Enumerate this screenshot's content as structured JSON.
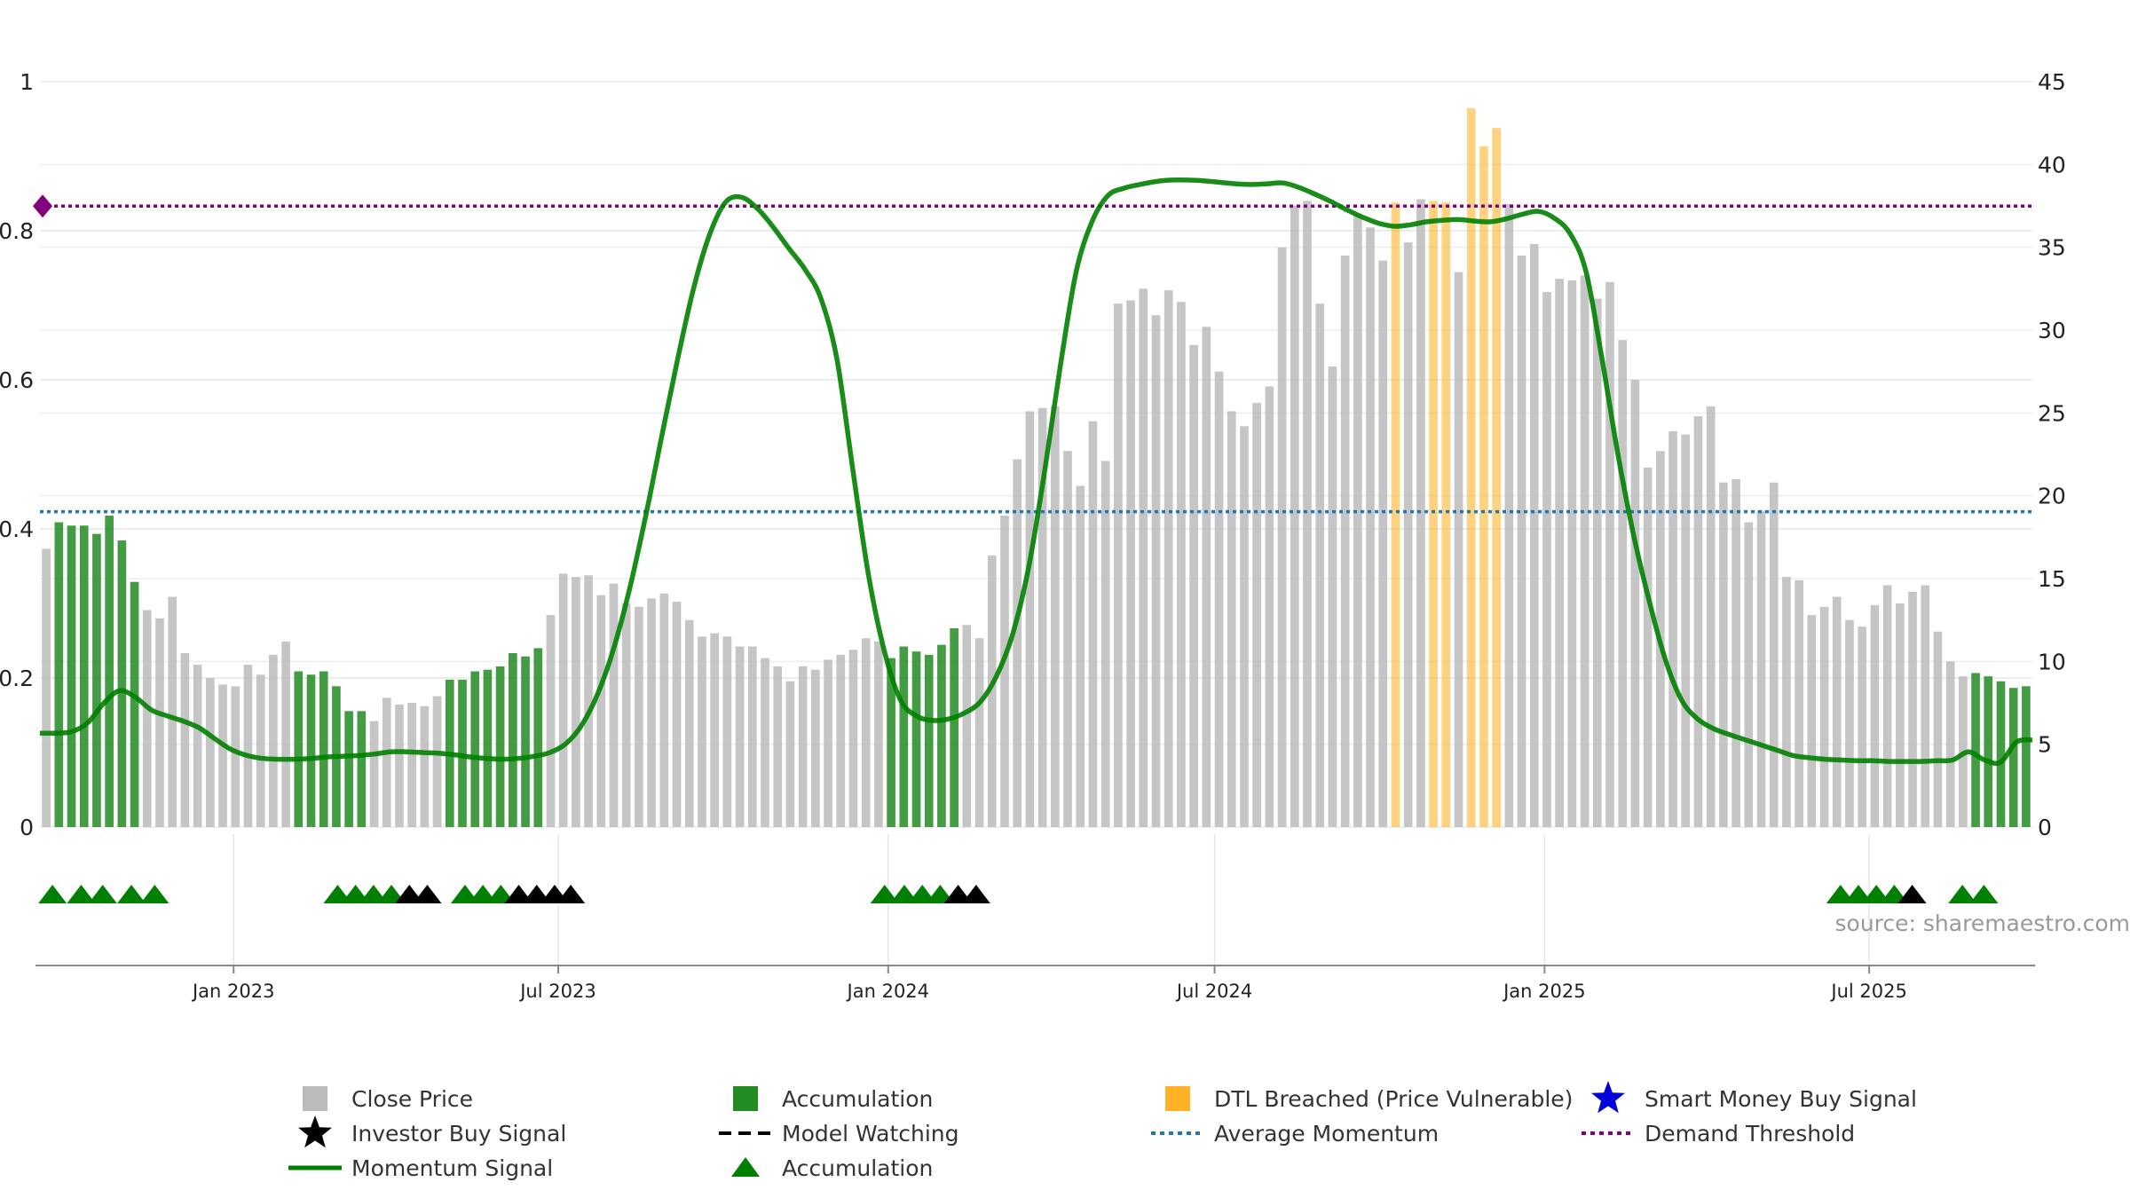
{
  "chart_data": {
    "type": "bar",
    "x_range": [
      "2022-09-15",
      "2025-09-30"
    ],
    "left_axis": {
      "ylim": [
        0,
        1
      ],
      "ticks": [
        "0",
        "0.2",
        "0.4",
        "0.6",
        "0.8",
        "1"
      ]
    },
    "right_axis": {
      "ylim": [
        0,
        45
      ],
      "ticks": [
        "0",
        "5",
        "10",
        "15",
        "20",
        "25",
        "30",
        "35",
        "40",
        "45"
      ]
    },
    "x_ticks": [
      "Jan 2023",
      "Jul 2023",
      "Jan 2024",
      "Jul 2024",
      "Jan 2025",
      "Jul 2025"
    ],
    "close_price": [
      16.8,
      18.4,
      18.2,
      18.2,
      17.7,
      18.8,
      17.3,
      14.8,
      13.1,
      12.6,
      13.9,
      10.5,
      9.8,
      9.0,
      8.6,
      8.5,
      9.8,
      9.2,
      10.4,
      11.2,
      9.4,
      9.2,
      9.4,
      8.5,
      7.0,
      7.0,
      6.4,
      7.8,
      7.4,
      7.5,
      7.3,
      7.9,
      8.9,
      8.9,
      9.4,
      9.5,
      9.7,
      10.5,
      10.3,
      10.8,
      12.8,
      15.3,
      15.1,
      15.2,
      14.0,
      14.7,
      13.5,
      13.3,
      13.8,
      14.1,
      13.6,
      12.5,
      11.5,
      11.7,
      11.5,
      10.9,
      10.9,
      10.2,
      9.7,
      8.8,
      9.7,
      9.5,
      10.1,
      10.4,
      10.7,
      11.4,
      11.2,
      10.2,
      10.9,
      10.6,
      10.4,
      11.0,
      12.0,
      12.2,
      11.4,
      16.4,
      18.8,
      22.2,
      25.1,
      25.3,
      25.4,
      22.7,
      20.6,
      24.5,
      22.1,
      31.6,
      31.8,
      32.5,
      30.9,
      32.4,
      31.7,
      29.1,
      30.2,
      27.5,
      25.1,
      24.2,
      25.6,
      26.6,
      35.0,
      37.5,
      37.8,
      31.6,
      27.8,
      34.5,
      37.0,
      36.2,
      34.2,
      37.7,
      35.3,
      37.9,
      37.8,
      37.7,
      33.5,
      43.4,
      41.1,
      42.2,
      37.6,
      34.5,
      35.2,
      32.3,
      33.1,
      33.0,
      33.3,
      31.9,
      32.9,
      29.4,
      27.0,
      21.7,
      22.7,
      23.9,
      23.7,
      24.8,
      25.4,
      20.8,
      21.0,
      18.4,
      19.1,
      20.8,
      15.1,
      14.9,
      12.8,
      13.3,
      13.9,
      12.5,
      12.1,
      13.4,
      14.6,
      13.5,
      14.2,
      14.6,
      11.8,
      10.0,
      9.1,
      9.3,
      9.1,
      8.8,
      8.4,
      8.5
    ],
    "bar_state": [
      "g",
      "a",
      "a",
      "a",
      "a",
      "a",
      "a",
      "a",
      "g",
      "g",
      "g",
      "g",
      "g",
      "g",
      "g",
      "g",
      "g",
      "g",
      "g",
      "g",
      "a",
      "a",
      "a",
      "a",
      "a",
      "a",
      "g",
      "g",
      "g",
      "g",
      "g",
      "g",
      "a",
      "a",
      "a",
      "a",
      "a",
      "a",
      "a",
      "a",
      "g",
      "g",
      "g",
      "g",
      "g",
      "g",
      "g",
      "g",
      "g",
      "g",
      "g",
      "g",
      "g",
      "g",
      "g",
      "g",
      "g",
      "g",
      "g",
      "g",
      "g",
      "g",
      "g",
      "g",
      "g",
      "g",
      "g",
      "a",
      "a",
      "a",
      "a",
      "a",
      "a",
      "g",
      "g",
      "g",
      "g",
      "g",
      "g",
      "g",
      "g",
      "g",
      "g",
      "g",
      "g",
      "g",
      "g",
      "g",
      "g",
      "g",
      "g",
      "g",
      "g",
      "g",
      "g",
      "g",
      "g",
      "g",
      "g",
      "g",
      "g",
      "g",
      "g",
      "g",
      "g",
      "g",
      "g",
      "o",
      "g",
      "g",
      "o",
      "o",
      "g",
      "o",
      "o",
      "o",
      "g",
      "g",
      "g",
      "g",
      "g",
      "g",
      "g",
      "g",
      "g",
      "g",
      "g",
      "g",
      "g",
      "g",
      "g",
      "g",
      "g",
      "g",
      "g",
      "g",
      "g",
      "g",
      "g",
      "g",
      "g",
      "g",
      "g",
      "g",
      "g",
      "g",
      "g",
      "g",
      "g",
      "g",
      "g",
      "g",
      "g",
      "a",
      "a",
      "a",
      "a",
      "a",
      "a",
      "g",
      "a",
      "a",
      "g"
    ],
    "momentum": [
      0.126,
      0.126,
      0.128,
      0.14,
      0.166,
      0.183,
      0.174,
      0.157,
      0.149,
      0.142,
      0.133,
      0.118,
      0.104,
      0.096,
      0.092,
      0.091,
      0.091,
      0.092,
      0.094,
      0.095,
      0.096,
      0.098,
      0.101,
      0.101,
      0.1,
      0.099,
      0.097,
      0.094,
      0.092,
      0.091,
      0.092,
      0.095,
      0.1,
      0.112,
      0.137,
      0.179,
      0.24,
      0.32,
      0.417,
      0.523,
      0.627,
      0.722,
      0.794,
      0.838,
      0.845,
      0.83,
      0.805,
      0.776,
      0.748,
      0.709,
      0.628,
      0.479,
      0.336,
      0.234,
      0.17,
      0.149,
      0.143,
      0.145,
      0.153,
      0.168,
      0.202,
      0.257,
      0.345,
      0.473,
      0.616,
      0.744,
      0.812,
      0.847,
      0.857,
      0.862,
      0.866,
      0.868,
      0.868,
      0.867,
      0.865,
      0.863,
      0.862,
      0.863,
      0.864,
      0.858,
      0.849,
      0.839,
      0.828,
      0.818,
      0.81,
      0.806,
      0.808,
      0.812,
      0.814,
      0.815,
      0.813,
      0.812,
      0.816,
      0.822,
      0.826,
      0.817,
      0.796,
      0.745,
      0.628,
      0.5,
      0.39,
      0.3,
      0.223,
      0.17,
      0.145,
      0.132,
      0.124,
      0.117,
      0.11,
      0.103,
      0.096,
      0.093,
      0.091,
      0.09,
      0.089,
      0.089,
      0.088,
      0.088,
      0.088,
      0.089,
      0.09,
      0.101,
      0.09,
      0.087,
      0.114,
      0.117
    ],
    "momentum_x_range": [
      "2022-09-15",
      "2025-09-30"
    ],
    "average_momentum": 0.423,
    "demand_threshold": 0.833,
    "signals": [
      {
        "date": "2022-09-22",
        "type": "accumulation"
      },
      {
        "date": "2022-10-08",
        "type": "accumulation"
      },
      {
        "date": "2022-10-20",
        "type": "accumulation"
      },
      {
        "date": "2022-11-05",
        "type": "accumulation"
      },
      {
        "date": "2022-11-18",
        "type": "accumulation"
      },
      {
        "date": "2023-02-28",
        "type": "accumulation"
      },
      {
        "date": "2023-03-10",
        "type": "accumulation"
      },
      {
        "date": "2023-03-20",
        "type": "accumulation"
      },
      {
        "date": "2023-03-30",
        "type": "accumulation"
      },
      {
        "date": "2023-04-09",
        "type": "investor"
      },
      {
        "date": "2023-04-19",
        "type": "investor"
      },
      {
        "date": "2023-05-10",
        "type": "accumulation"
      },
      {
        "date": "2023-05-20",
        "type": "accumulation"
      },
      {
        "date": "2023-05-30",
        "type": "accumulation"
      },
      {
        "date": "2023-06-09",
        "type": "investor"
      },
      {
        "date": "2023-06-19",
        "type": "investor"
      },
      {
        "date": "2023-06-29",
        "type": "investor"
      },
      {
        "date": "2023-07-08",
        "type": "investor"
      },
      {
        "date": "2023-12-30",
        "type": "accumulation"
      },
      {
        "date": "2024-01-10",
        "type": "accumulation"
      },
      {
        "date": "2024-01-20",
        "type": "accumulation"
      },
      {
        "date": "2024-01-30",
        "type": "accumulation"
      },
      {
        "date": "2024-02-09",
        "type": "investor"
      },
      {
        "date": "2024-02-19",
        "type": "investor"
      },
      {
        "date": "2025-06-15",
        "type": "accumulation"
      },
      {
        "date": "2025-06-25",
        "type": "accumulation"
      },
      {
        "date": "2025-07-05",
        "type": "accumulation"
      },
      {
        "date": "2025-07-15",
        "type": "accumulation"
      },
      {
        "date": "2025-07-25",
        "type": "investor"
      },
      {
        "date": "2025-08-22",
        "type": "accumulation"
      },
      {
        "date": "2025-09-03",
        "type": "accumulation"
      }
    ],
    "legend": [
      {
        "label": "Close Price",
        "symbol": "square",
        "color": "#bbbbbb"
      },
      {
        "label": "Accumulation",
        "symbol": "square",
        "color": "#228b22"
      },
      {
        "label": "DTL Breached (Price Vulnerable)",
        "symbol": "square",
        "color": "#ffa500"
      },
      {
        "label": "Smart Money Buy Signal",
        "symbol": "star",
        "color": "#0000dd"
      },
      {
        "label": "Investor Buy Signal",
        "symbol": "star",
        "color": "#000000"
      },
      {
        "label": "Model Watching",
        "symbol": "dash",
        "color": "#000000"
      },
      {
        "label": "Average Momentum",
        "symbol": "dot",
        "color": "#1f77b4"
      },
      {
        "label": "Demand Threshold",
        "symbol": "dot",
        "color": "#800080"
      },
      {
        "label": "Momentum Signal",
        "symbol": "line",
        "color": "#008000"
      },
      {
        "label": "Accumulation",
        "symbol": "triangle",
        "color": "#008000"
      }
    ],
    "grid": true,
    "legend_position": "bottom"
  },
  "colors": {
    "price_gray": "#bbbbbb",
    "accumulation_green": "#228b22",
    "dtl_orange": "#ffa500",
    "momentum_green": "#008000",
    "average_blue": "#1f77b4",
    "threshold_purple": "#800080",
    "investor_black": "#000000"
  },
  "source_text": "source: sharemaestro.com"
}
